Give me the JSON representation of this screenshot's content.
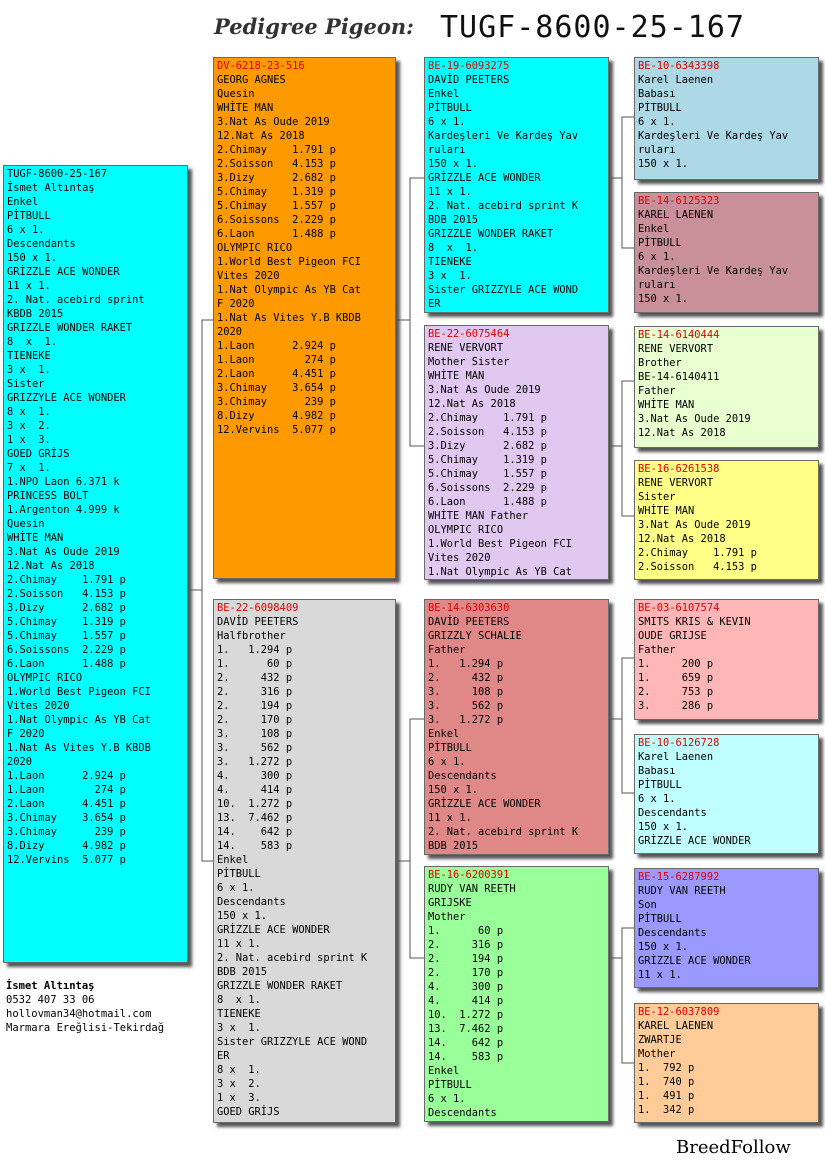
{
  "header": {
    "title": "Pedigree Pigeon:",
    "ring": "TUGF-8600-25-167"
  },
  "owner": {
    "name": "İsmet Altıntaş",
    "phone": "0532 407 33 06",
    "email": "hollovman34@hotmail.com",
    "location": "Marmara Ereğlisi-Tekirdağ"
  },
  "brand": "BreedFollow",
  "cards": {
    "subject": {
      "color": "#00ffff",
      "ring": "TUGF-8600-25-167",
      "ring_color": "#000000",
      "lines": [
        "İsmet Altıntaş",
        "Enkel",
        "PİTBULL",
        "6 x 1.",
        "Descendants",
        "150 x 1.",
        "GRİZZLE ACE WONDER",
        "11 x 1.",
        "2. Nat. acebird sprint",
        "KBDB 2015",
        "GRIZZLE WONDER RAKET",
        "8  x  1.",
        "TIENEKE",
        "3 x  1.",
        "Sister",
        "GRIZZYLE ACE WONDER",
        "8 x  1.",
        "3 x  2.",
        "1 x  3.",
        "GOED GRİJS",
        "7 x  1.",
        "1.NPO Laon 6.371 k",
        "PRINCESS BOLT",
        "1.Argenton 4.999 k",
        "Quesin",
        "WHİTE MAN",
        "3.Nat As Oude 2019",
        "12.Nat As 2018",
        "2.Chimay    1.791 p",
        "2.Soisson   4.153 p",
        "3.Dizy      2.682 p",
        "5.Chimay    1.319 p",
        "5.Chimay    1.557 p",
        "6.Soissons  2.229 p",
        "6.Laon      1.488 p",
        "OLYMPIC RICO",
        "1.World Best Pigeon FCI",
        "Vites 2020",
        "1.Nat Olympic As YB Cat",
        "F 2020",
        "1.Nat As Vites Y.B KBDB",
        "2020",
        "1.Laon      2.924 p",
        "1.Laon        274 p",
        "2.Laon      4.451 p",
        "3.Chimay    3.654 p",
        "3.Chimay      239 p",
        "8.Dizy      4.982 p",
        "12.Vervins  5.077 p"
      ]
    },
    "sire": {
      "color": "#ff9900",
      "ring": "DV-6218-23-516",
      "lines": [
        "GEORG AGNES",
        "Quesin",
        "WHİTE MAN",
        "3.Nat As Oude 2019",
        "12.Nat As 2018",
        "2.Chimay    1.791 p",
        "2.Soisson   4.153 p",
        "3.Dizy      2.682 p",
        "5.Chimay    1.319 p",
        "5.Chimay    1.557 p",
        "6.Soissons  2.229 p",
        "6.Laon      1.488 p",
        "OLYMPIC RICO",
        "1.World Best Pigeon FCI",
        "Vites 2020",
        "1.Nat Olympic As YB Cat",
        "F 2020",
        "1.Nat As Vites Y.B KBDB",
        "2020",
        "1.Laon      2.924 p",
        "1.Laon        274 p",
        "2.Laon      4.451 p",
        "3.Chimay    3.654 p",
        "3.Chimay      239 p",
        "8.Dizy      4.982 p",
        "12.Vervins  5.077 p"
      ]
    },
    "dam": {
      "color": "#d9d9d9",
      "ring": "BE-22-6098409",
      "lines": [
        "DAVİD PEETERS",
        "Halfbrother",
        "1.   1.294 p",
        "1.      60 p",
        "2.     432 p",
        "2.     316 p",
        "2.     194 p",
        "2.     170 p",
        "3.     108 p",
        "3.     562 p",
        "3.   1.272 p",
        "4.     300 p",
        "4.     414 p",
        "10.  1.272 p",
        "13.  7.462 p",
        "14.    642 p",
        "14.    583 p",
        "Enkel",
        "PİTBULL",
        "6 x 1.",
        "Descendants",
        "150 x 1.",
        "GRİZZLE ACE WONDER",
        "11 x 1.",
        "2. Nat. acebird sprint K",
        "BDB 2015",
        "GRIZZLE WONDER RAKET",
        "8  x 1.",
        "TIENEKE",
        "3 x  1.",
        "Sister GRIZZYLE ACE WOND",
        "ER",
        "8 x  1.",
        "3 x  2.",
        "1 x  3.",
        "GOED GRİJS"
      ]
    },
    "ss": {
      "color": "#00ffff",
      "ring": "BE-19-6093275",
      "lines": [
        "DAVİD PEETERS",
        "Enkel",
        "PİTBULL",
        "6 x 1.",
        "Kardeşleri Ve Kardeş Yav",
        "ruları",
        "150 x 1.",
        "GRİZZLE ACE WONDER",
        "11 x 1.",
        "2. Nat. acebird sprint K",
        "BDB 2015",
        "GRIZZLE WONDER RAKET",
        "8  x  1.",
        "TIENEKE",
        "3 x  1.",
        "Sister GRIZZYLE ACE WOND",
        "ER"
      ]
    },
    "sd": {
      "color": "#e0c8f0",
      "ring": "BE-22-6075464",
      "lines": [
        "RENE VERVORT",
        "Mother Sister",
        "WHİTE MAN",
        "3.Nat As Oude 2019",
        "12.Nat As 2018",
        "2.Chimay    1.791 p",
        "2.Soisson   4.153 p",
        "3.Dizy      2.682 p",
        "5.Chimay    1.319 p",
        "5.Chimay    1.557 p",
        "6.Soissons  2.229 p",
        "6.Laon      1.488 p",
        "WHİTE MAN Father",
        "OLYMPIC RICO",
        "1.World Best Pigeon FCI",
        "Vites 2020",
        "1.Nat Olympic As YB Cat"
      ]
    },
    "ds": {
      "color": "#e08888",
      "ring": "BE-14-6303630",
      "lines": [
        "DAVİD PEETERS",
        "GRIZZLY SCHALIE",
        "Father",
        "1.   1.294 p",
        "2.     432 p",
        "3.     108 p",
        "3.     562 p",
        "3.   1.272 p",
        "Enkel",
        "PİTBULL",
        "6 x 1.",
        "Descendants",
        "150 x 1.",
        "GRİZZLE ACE WONDER",
        "11 x 1.",
        "2. Nat. acebird sprint K",
        "BDB 2015"
      ]
    },
    "dd": {
      "color": "#99ff99",
      "ring": "BE-16-6200391",
      "lines": [
        "RUDY VAN REETH",
        "GRIJSKE",
        "Mother",
        "1.      60 p",
        "2.     316 p",
        "2.     194 p",
        "2.     170 p",
        "4.     300 p",
        "4.     414 p",
        "10.  1.272 p",
        "13.  7.462 p",
        "14.    642 p",
        "14.    583 p",
        "Enkel",
        "PİTBULL",
        "6 x 1.",
        "Descendants"
      ]
    },
    "sss": {
      "color": "#add8e6",
      "ring": "BE-10-6343398",
      "lines": [
        "Karel Laenen",
        "Babası",
        "PİTBULL",
        "6 x 1.",
        "Kardeşleri Ve Kardeş Yav",
        "ruları",
        "150 x 1."
      ]
    },
    "ssd": {
      "color": "#c9909a",
      "ring": "BE-14-6125323",
      "lines": [
        "KAREL LAENEN",
        "Enkel",
        "PİTBULL",
        "6 x 1.",
        "Kardeşleri Ve Kardeş Yav",
        "ruları",
        "150 x 1."
      ]
    },
    "sds": {
      "color": "#e8ffd0",
      "ring": "BE-14-6140444",
      "lines": [
        "RENE VERVORT",
        "Brother",
        "BE-14-6140411",
        "Father",
        "WHİTE MAN",
        "3.Nat As Oude 2019",
        "12.Nat As 2018"
      ]
    },
    "sdd": {
      "color": "#ffff88",
      "ring": "BE-16-6261538",
      "lines": [
        "RENE VERVORT",
        "Sister",
        "WHİTE MAN",
        "3.Nat As Oude 2019",
        "12.Nat As 2018",
        "2.Chimay    1.791 p",
        "2.Soisson   4.153 p"
      ]
    },
    "dss": {
      "color": "#ffb6b6",
      "ring": "BE-03-6107574",
      "lines": [
        "SMITS KRIS & KEVIN",
        "OUDE GRIJSE",
        "Father",
        "1.     200 p",
        "1.     659 p",
        "2.     753 p",
        "3.     286 p"
      ]
    },
    "dsd": {
      "color": "#c0ffff",
      "ring": "BE-10-6126728",
      "lines": [
        "Karel Laenen",
        "Babası",
        "PİTBULL",
        "6 x 1.",
        "Descendants",
        "150 x 1.",
        "GRİZZLE ACE WONDER"
      ]
    },
    "dds": {
      "color": "#9999ff",
      "ring": "BE-15-6287992",
      "lines": [
        "RUDY VAN REETH",
        "Son",
        "PİTBULL",
        "Descendants",
        "150 x 1.",
        "GRİZZLE ACE WONDER",
        "11 x 1."
      ]
    },
    "ddd": {
      "color": "#ffcc99",
      "ring": "BE-12-6037809",
      "lines": [
        "KAREL LAENEN",
        "ZWARTJE",
        "Mother",
        "1.  792 p",
        "1.  740 p",
        "1.  491 p",
        "1.  342 p"
      ]
    }
  }
}
